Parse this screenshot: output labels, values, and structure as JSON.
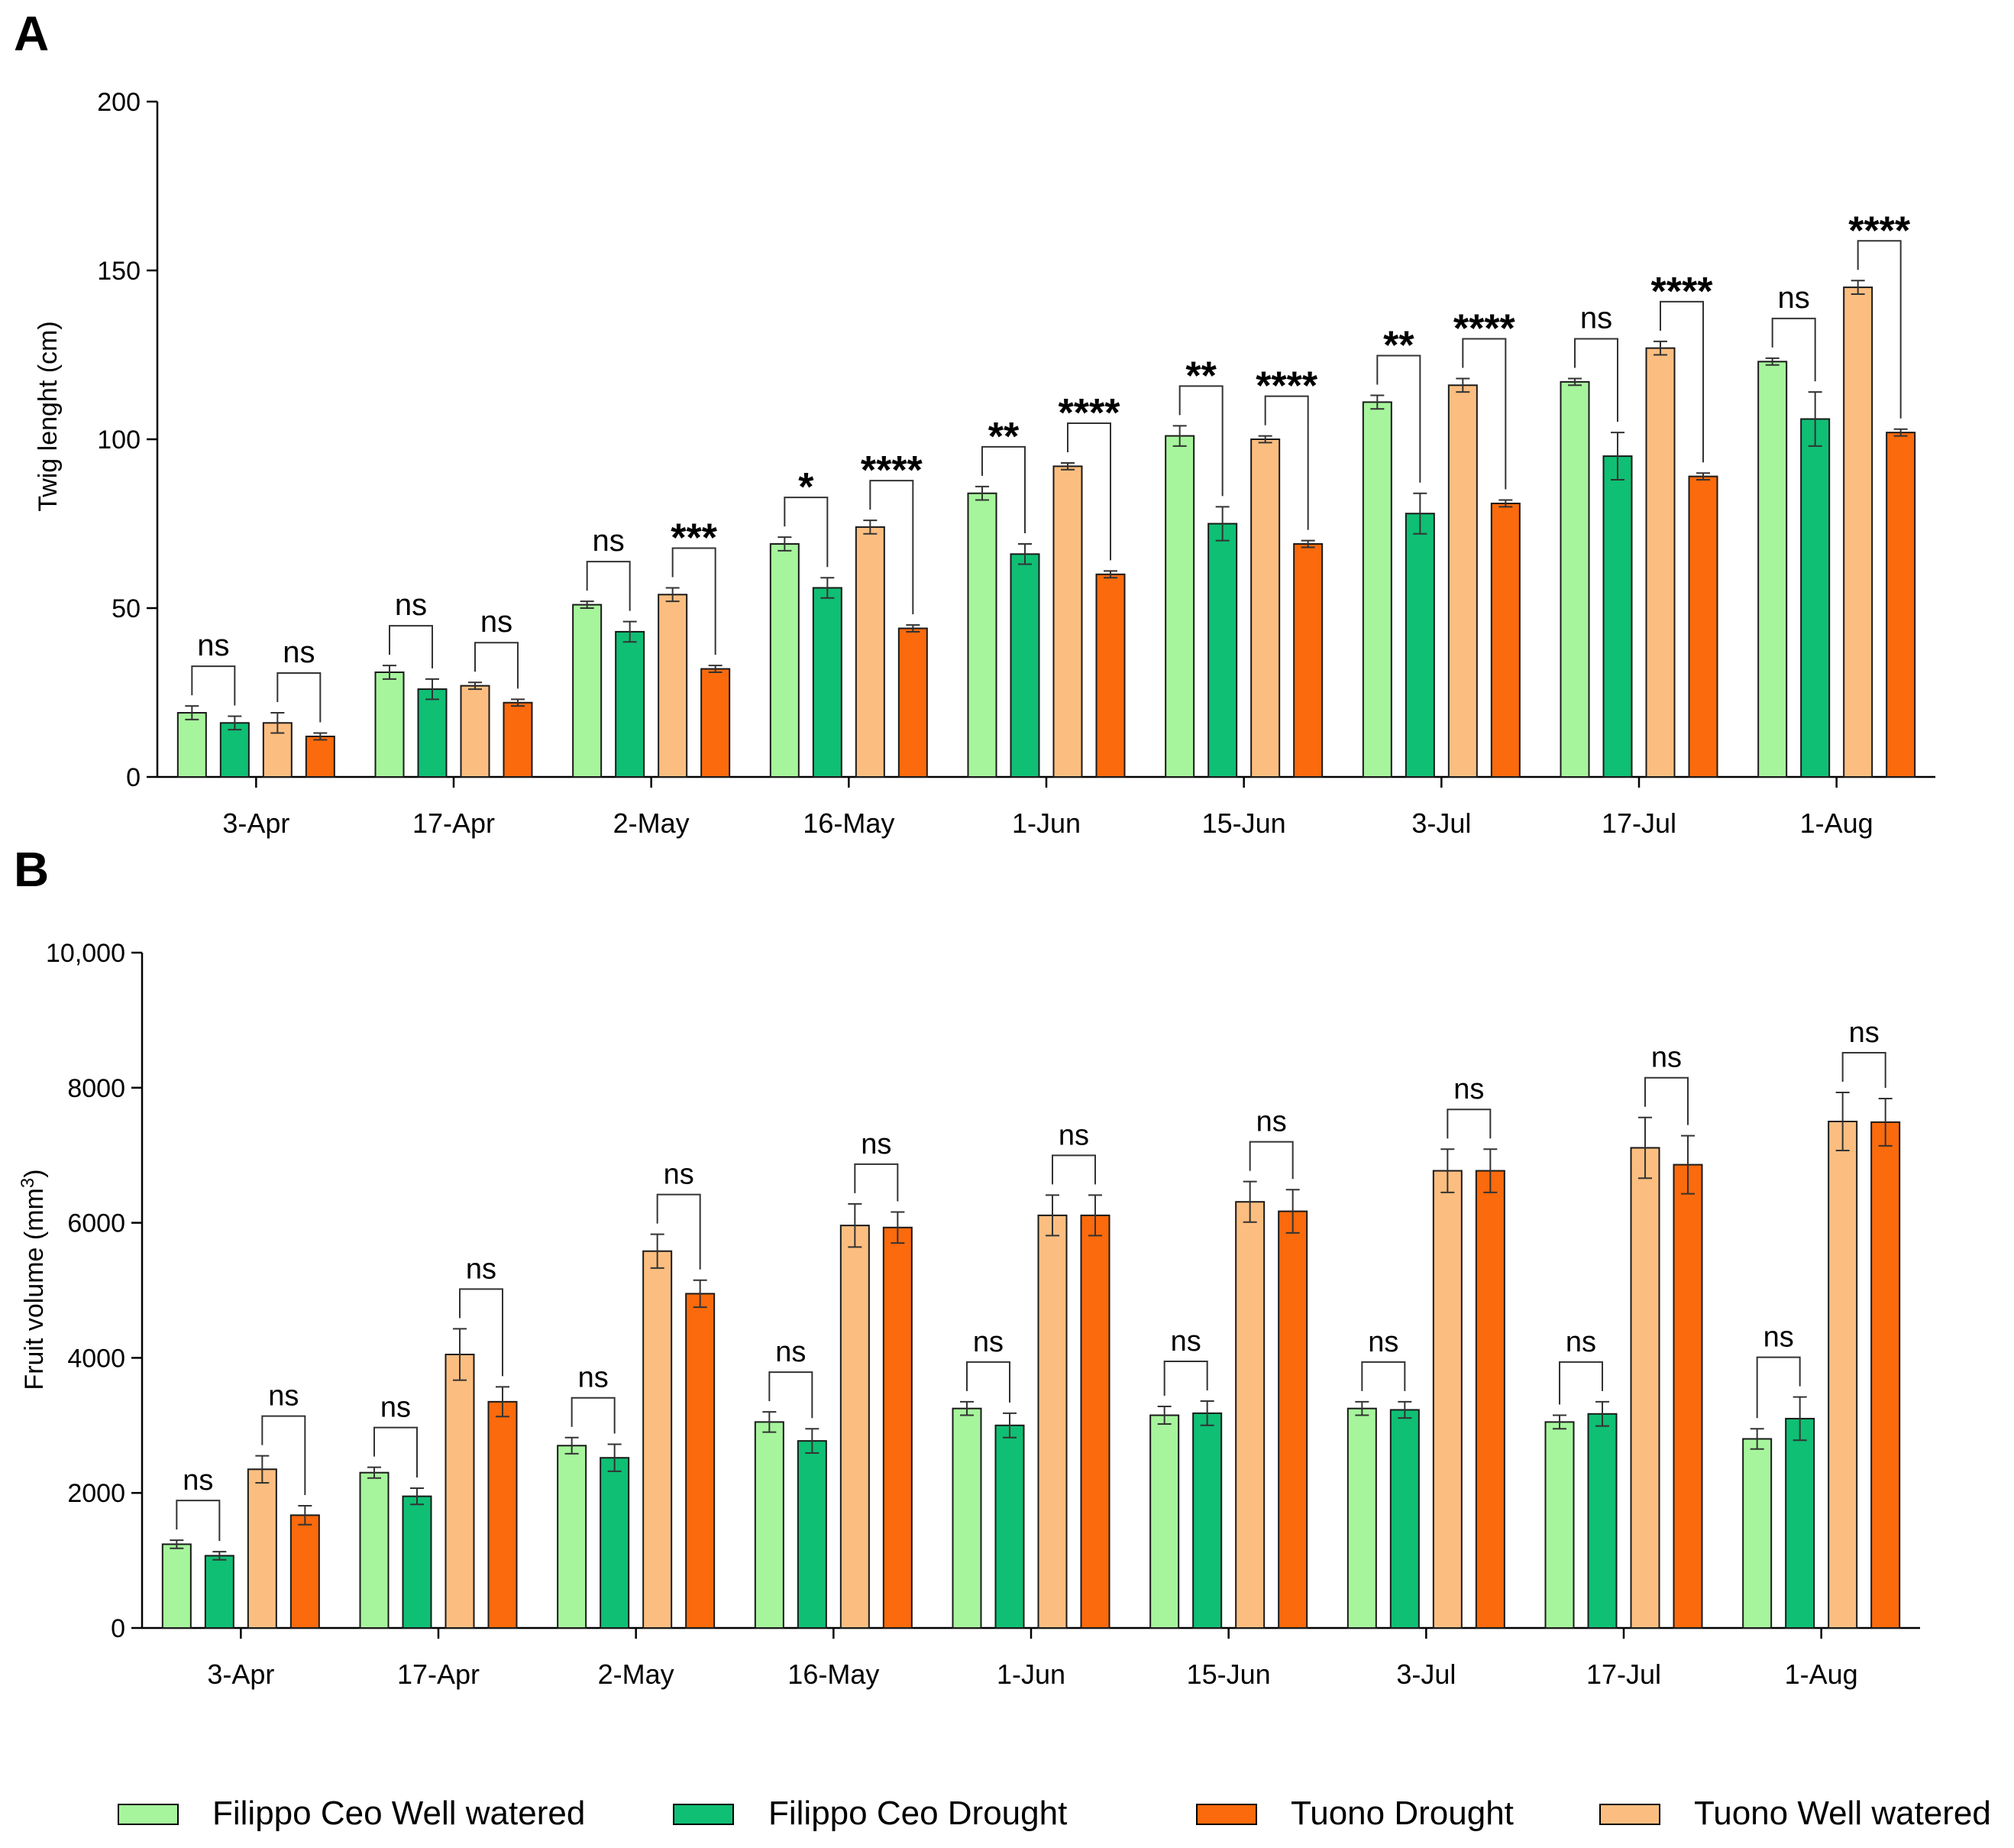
{
  "legend": [
    {
      "name": "Filippo Ceo Well watered",
      "color": "#a6f59c"
    },
    {
      "name": "Filippo Ceo Drought",
      "color": "#0fbf74"
    },
    {
      "name": "Tuono Drought",
      "color": "#fb6a0c"
    },
    {
      "name": "Tuono Well watered",
      "color": "#fcbe80"
    }
  ],
  "chart_data": [
    {
      "panel_label": "A",
      "type": "bar",
      "title": "",
      "xlabel": "",
      "ylabel": "Twig lenght (cm)",
      "ylim": [
        0,
        200
      ],
      "yticks": [
        "0",
        "50",
        "100",
        "150",
        "200"
      ],
      "categories": [
        "3-Apr",
        "17-Apr",
        "2-May",
        "16-May",
        "1-Jun",
        "15-Jun",
        "3-Jul",
        "17-Jul",
        "1-Aug"
      ],
      "series": [
        {
          "name": "Filippo Ceo Well watered",
          "color": "#a6f59c",
          "values": [
            19,
            31,
            51,
            69,
            84,
            101,
            111,
            117,
            123
          ],
          "errors": [
            2,
            2,
            1,
            2,
            2,
            3,
            2,
            1,
            1
          ]
        },
        {
          "name": "Filippo Ceo Drought",
          "color": "#0fbf74",
          "values": [
            16,
            26,
            43,
            56,
            66,
            75,
            78,
            95,
            106
          ],
          "errors": [
            2,
            3,
            3,
            3,
            3,
            5,
            6,
            7,
            8
          ]
        },
        {
          "name": "Tuono Well watered",
          "color": "#fcbe80",
          "values": [
            16,
            27,
            54,
            74,
            92,
            100,
            116,
            127,
            145
          ],
          "errors": [
            3,
            1,
            2,
            2,
            1,
            1,
            2,
            2,
            2
          ]
        },
        {
          "name": "Tuono Drought",
          "color": "#fb6a0c",
          "values": [
            12,
            22,
            32,
            44,
            60,
            69,
            81,
            89,
            102
          ],
          "errors": [
            1,
            1,
            1,
            1,
            1,
            1,
            1,
            1,
            1
          ]
        }
      ],
      "significance": [
        {
          "fc": "ns",
          "tuono": "ns"
        },
        {
          "fc": "ns",
          "tuono": "ns"
        },
        {
          "fc": "ns",
          "tuono": "***"
        },
        {
          "fc": "*",
          "tuono": "****"
        },
        {
          "fc": "**",
          "tuono": "****"
        },
        {
          "fc": "**",
          "tuono": "****"
        },
        {
          "fc": "**",
          "tuono": "****"
        },
        {
          "fc": "ns",
          "tuono": "****"
        },
        {
          "fc": "ns",
          "tuono": "****"
        }
      ],
      "grid": false
    },
    {
      "panel_label": "B",
      "type": "bar",
      "title": "",
      "xlabel": "",
      "ylabel": "Fruit volume (mm",
      "ylabel_sup": "3",
      "ylabel_end": ")",
      "ylim": [
        0,
        10000
      ],
      "yticks": [
        "0",
        "2000",
        "4000",
        "6000",
        "8000",
        "10,000"
      ],
      "categories": [
        "3-Apr",
        "17-Apr",
        "2-May",
        "16-May",
        "1-Jun",
        "15-Jun",
        "3-Jul",
        "17-Jul",
        "1-Aug"
      ],
      "series": [
        {
          "name": "Filippo Ceo Well watered",
          "color": "#a6f59c",
          "values": [
            1240,
            2300,
            2700,
            3050,
            3250,
            3150,
            3250,
            3050,
            2800
          ],
          "errors": [
            60,
            80,
            120,
            150,
            100,
            130,
            100,
            100,
            150
          ]
        },
        {
          "name": "Filippo Ceo Drought",
          "color": "#0fbf74",
          "values": [
            1070,
            1950,
            2520,
            2770,
            3000,
            3180,
            3230,
            3170,
            3100
          ],
          "errors": [
            60,
            120,
            200,
            180,
            180,
            180,
            120,
            180,
            320
          ]
        },
        {
          "name": "Tuono Well watered",
          "color": "#fcbe80",
          "values": [
            2350,
            4050,
            5580,
            5960,
            6110,
            6310,
            6770,
            7110,
            7500
          ],
          "errors": [
            200,
            380,
            250,
            320,
            300,
            300,
            320,
            450,
            430
          ]
        },
        {
          "name": "Tuono Drought",
          "color": "#fb6a0c",
          "values": [
            1670,
            3350,
            4950,
            5930,
            6110,
            6170,
            6770,
            6860,
            7490
          ],
          "errors": [
            140,
            220,
            200,
            230,
            300,
            320,
            320,
            430,
            350
          ]
        }
      ],
      "significance": [
        {
          "fc": "ns",
          "tuono": "ns"
        },
        {
          "fc": "ns",
          "tuono": "ns"
        },
        {
          "fc": "ns",
          "tuono": "ns"
        },
        {
          "fc": "ns",
          "tuono": "ns"
        },
        {
          "fc": "ns",
          "tuono": "ns"
        },
        {
          "fc": "ns",
          "tuono": "ns"
        },
        {
          "fc": "ns",
          "tuono": "ns"
        },
        {
          "fc": "ns",
          "tuono": "ns"
        },
        {
          "fc": "ns",
          "tuono": "ns"
        }
      ],
      "grid": false
    }
  ]
}
